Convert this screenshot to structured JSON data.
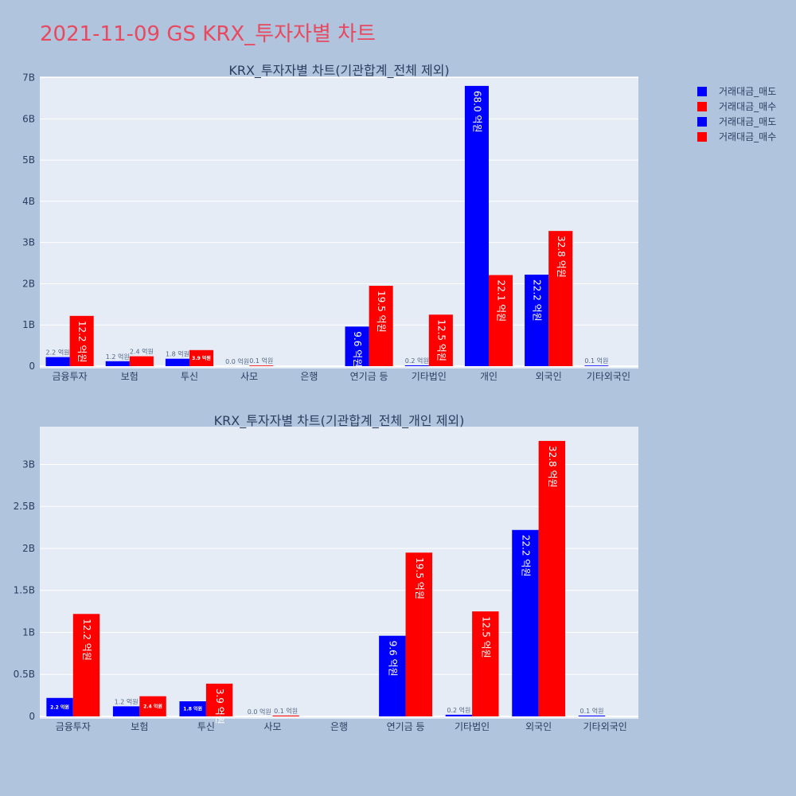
{
  "title": "2021-11-09 GS KRX_투자자별 차트",
  "colors": {
    "sell": "#0000ff",
    "buy": "#ff0000",
    "title": "#e8495f",
    "plot_bg": "#e5ecf6",
    "page_bg": "#b0c4de"
  },
  "legend": [
    {
      "label": "거래대금_매도",
      "color": "#0000ff"
    },
    {
      "label": "거래대금_매수",
      "color": "#ff0000"
    },
    {
      "label": "거래대금_매도",
      "color": "#0000ff"
    },
    {
      "label": "거래대금_매수",
      "color": "#ff0000"
    }
  ],
  "chart_data": [
    {
      "type": "bar",
      "title": "KRX_투자자별 차트(기관합계_전체 제외)",
      "categories": [
        "금융투자",
        "보험",
        "투신",
        "사모",
        "은행",
        "연기금 등",
        "기타법인",
        "개인",
        "외국인",
        "기타외국인"
      ],
      "series": [
        {
          "name": "거래대금_매도",
          "values": [
            220000000,
            120000000,
            180000000,
            0,
            null,
            960000000,
            20000000,
            6800000000,
            2220000000,
            10000000
          ],
          "labels": [
            "2.2 억원",
            "1.2 억원",
            "1.8 억원",
            "0.0 억원",
            "",
            "9.6 억원",
            "0.2 억원",
            "68.0 억원",
            "22.2 억원",
            "0.1 억원"
          ]
        },
        {
          "name": "거래대금_매수",
          "values": [
            1220000000,
            240000000,
            390000000,
            10000000,
            null,
            1950000000,
            1250000000,
            2210000000,
            3280000000,
            null
          ],
          "labels": [
            "12.2 억원",
            "2.4 억원",
            "3.9 억원",
            "0.1 억원",
            "",
            "19.5 억원",
            "12.5 억원",
            "22.1 억원",
            "32.8 억원",
            ""
          ]
        }
      ],
      "yticks": [
        {
          "value": 0,
          "label": "0"
        },
        {
          "value": 1000000000,
          "label": "1B"
        },
        {
          "value": 2000000000,
          "label": "2B"
        },
        {
          "value": 3000000000,
          "label": "3B"
        },
        {
          "value": 4000000000,
          "label": "4B"
        },
        {
          "value": 5000000000,
          "label": "5B"
        },
        {
          "value": 6000000000,
          "label": "6B"
        },
        {
          "value": 7000000000,
          "label": "7B"
        }
      ],
      "ylim": [
        0,
        7030000000
      ],
      "grid": true
    },
    {
      "type": "bar",
      "title": "KRX_투자자별 차트(기관합계_전체_개인 제외)",
      "categories": [
        "금융투자",
        "보험",
        "투신",
        "사모",
        "은행",
        "연기금 등",
        "기타법인",
        "외국인",
        "기타외국인"
      ],
      "series": [
        {
          "name": "거래대금_매도",
          "values": [
            220000000,
            120000000,
            180000000,
            0,
            null,
            960000000,
            20000000,
            2220000000,
            10000000
          ],
          "labels": [
            "2.2 억원",
            "1.2 억원",
            "1.8 억원",
            "0.0 억원",
            "",
            "9.6 억원",
            "0.2 억원",
            "22.2 억원",
            "0.1 억원"
          ]
        },
        {
          "name": "거래대금_매수",
          "values": [
            1220000000,
            240000000,
            390000000,
            10000000,
            null,
            1950000000,
            1250000000,
            3280000000,
            null
          ],
          "labels": [
            "12.2 억원",
            "2.4 억원",
            "3.9 억원",
            "0.1 억원",
            "",
            "19.5 억원",
            "12.5 억원",
            "32.8 억원",
            ""
          ]
        }
      ],
      "yticks": [
        {
          "value": 0,
          "label": "0"
        },
        {
          "value": 500000000,
          "label": "0.5B"
        },
        {
          "value": 1000000000,
          "label": "1B"
        },
        {
          "value": 1500000000,
          "label": "1.5B"
        },
        {
          "value": 2000000000,
          "label": "2B"
        },
        {
          "value": 2500000000,
          "label": "2.5B"
        },
        {
          "value": 3000000000,
          "label": "3B"
        }
      ],
      "ylim": [
        0,
        3450000000
      ],
      "grid": true
    }
  ]
}
